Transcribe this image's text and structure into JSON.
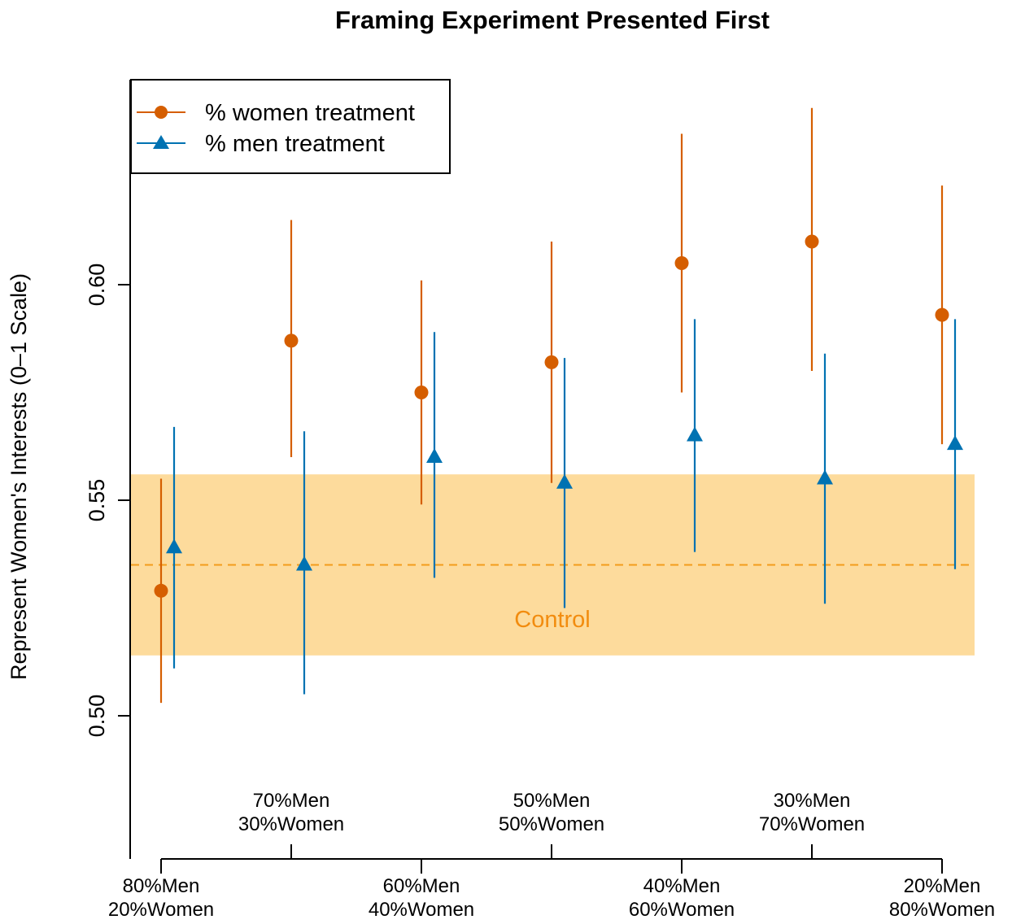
{
  "chart_data": {
    "type": "scatter",
    "title": "Framing Experiment Presented First",
    "ylabel": "Represent Women's Interests (0–1 Scale)",
    "xlabel": "",
    "ylim": [
      0.466,
      0.646
    ],
    "yticks": [
      "0.50",
      "0.55",
      "0.60"
    ],
    "ytick_values": [
      0.5,
      0.55,
      0.6
    ],
    "categories": [
      [
        "80%Men",
        "20%Women"
      ],
      [
        "70%Men",
        "30%Women"
      ],
      [
        "60%Men",
        "40%Women"
      ],
      [
        "50%Men",
        "50%Women"
      ],
      [
        "40%Men",
        "60%Women"
      ],
      [
        "30%Men",
        "70%Women"
      ],
      [
        "20%Men",
        "80%Women"
      ]
    ],
    "series": [
      {
        "name": "% women treatment",
        "color": "#d55e00",
        "marker": "circle",
        "values": [
          0.529,
          0.587,
          0.575,
          0.582,
          0.605,
          0.61,
          0.593
        ],
        "lower": [
          0.503,
          0.56,
          0.549,
          0.554,
          0.575,
          0.58,
          0.563
        ],
        "upper": [
          0.555,
          0.615,
          0.601,
          0.61,
          0.635,
          0.641,
          0.623
        ]
      },
      {
        "name": "% men treatment",
        "color": "#0072b2",
        "marker": "triangle",
        "values": [
          0.539,
          0.535,
          0.56,
          0.554,
          0.565,
          0.555,
          0.563
        ],
        "lower": [
          0.511,
          0.505,
          0.532,
          0.525,
          0.538,
          0.526,
          0.534
        ],
        "upper": [
          0.567,
          0.566,
          0.589,
          0.583,
          0.592,
          0.584,
          0.592
        ]
      }
    ],
    "control": {
      "label": "Control",
      "mean": 0.535,
      "lower": 0.514,
      "upper": 0.556,
      "band_color": "#fddb9c",
      "line_color": "#f39c1c",
      "label_color": "#f28c0f"
    },
    "legend": {
      "position": "top-left"
    },
    "grid": false
  }
}
